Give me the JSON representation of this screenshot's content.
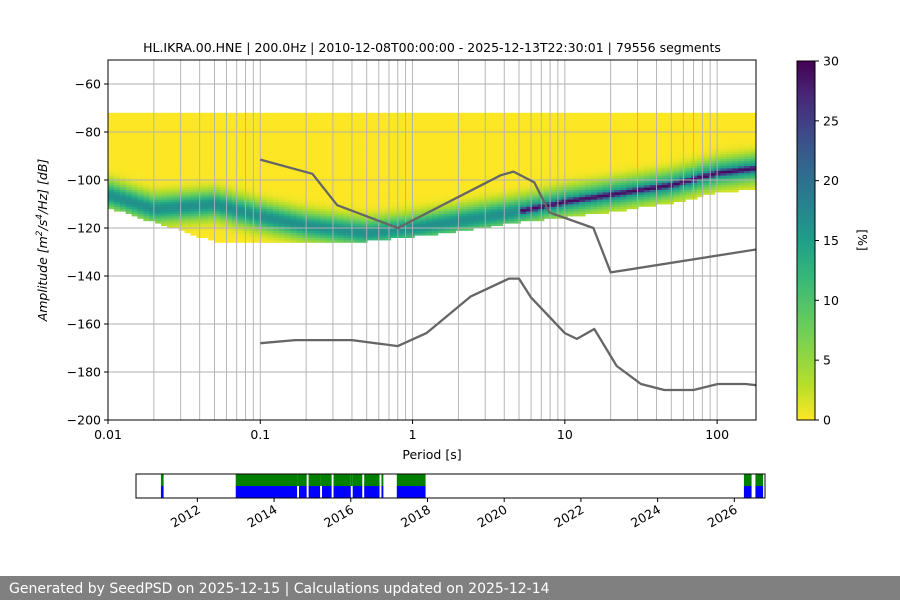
{
  "chart_data": [
    {
      "type": "heatmap",
      "title": "HL.IKRA.00.HNE | 200.0Hz | 2010-12-08T00:00:00 - 2025-12-13T22:30:01 | 79556 segments",
      "xlabel": "Period [s]",
      "ylabel_parts": [
        "Amplitude [m",
        "2",
        "/s",
        "4",
        "/Hz] [dB]"
      ],
      "x_scale": "log",
      "xlim": [
        0.01,
        180
      ],
      "ylim": [
        -200,
        -50
      ],
      "x_ticks": [
        0.01,
        0.1,
        1,
        10,
        100
      ],
      "x_tick_labels": [
        "0.01",
        "0.1",
        "1",
        "10",
        "100"
      ],
      "y_ticks": [
        -60,
        -80,
        -100,
        -120,
        -140,
        -160,
        -180,
        -200
      ],
      "y_tick_labels": [
        "−60",
        "−80",
        "−100",
        "−120",
        "−140",
        "−160",
        "−180",
        "−200"
      ],
      "grid": true,
      "colorbar": {
        "label": "[%]",
        "range": [
          0,
          30
        ],
        "ticks": [
          0,
          5,
          10,
          15,
          20,
          25,
          30
        ],
        "tick_labels": [
          "0",
          "5",
          "10",
          "15",
          "20",
          "25",
          "30"
        ],
        "colormap": "viridis"
      },
      "mode_curve": {
        "period": [
          0.01,
          0.02,
          0.05,
          0.1,
          0.2,
          0.5,
          1,
          2,
          5,
          10,
          20,
          50,
          100,
          180
        ],
        "amplitude_db": [
          -106,
          -112,
          -110,
          -115,
          -119,
          -122,
          -120,
          -117,
          -113,
          -109,
          -106,
          -102,
          -97,
          -95
        ]
      },
      "spread_band": {
        "period": [
          0.01,
          0.02,
          0.05,
          0.1,
          0.2,
          0.5,
          1,
          2,
          5,
          10,
          20,
          50,
          100,
          180
        ],
        "upper_db": [
          -72,
          -72,
          -72,
          -72,
          -72,
          -72,
          -72,
          -72,
          -72,
          -72,
          -72,
          -72,
          -72,
          -72
        ],
        "lower_db": [
          -112,
          -118,
          -126,
          -126,
          -126,
          -126,
          -124,
          -122,
          -118,
          -116,
          -114,
          -110,
          -106,
          -104
        ]
      },
      "nhnm": {
        "period": [
          0.1,
          0.22,
          0.32,
          0.8,
          3.8,
          4.6,
          6.3,
          7.9,
          15.4,
          20,
          354.8
        ],
        "amplitude_db": [
          -91.5,
          -97.4,
          -110.5,
          -120,
          -98,
          -96.5,
          -101,
          -113.5,
          -120,
          -138.5,
          -126
        ]
      },
      "nlnm": {
        "period": [
          0.1,
          0.17,
          0.4,
          0.8,
          1.24,
          2.4,
          4.3,
          5,
          6,
          10,
          12,
          15.6,
          21.9,
          31.6,
          45,
          70,
          101,
          154,
          180
        ],
        "amplitude_db": [
          -168,
          -166.7,
          -166.7,
          -169.2,
          -163.7,
          -148.6,
          -141.1,
          -141.1,
          -149,
          -163.8,
          -166.2,
          -162.1,
          -177.5,
          -185,
          -187.5,
          -187.5,
          -185,
          -185,
          -185.5
        ]
      }
    },
    {
      "type": "timeline",
      "x_ticks": [
        2012,
        2014,
        2016,
        2018,
        2020,
        2022,
        2024,
        2026
      ],
      "x_tick_labels": [
        "2012",
        "2014",
        "2016",
        "2018",
        "2020",
        "2022",
        "2024",
        "2026"
      ],
      "xlim": [
        2010.4,
        2026.8
      ],
      "top_color": "#008000",
      "bottom_color": "#0000ff",
      "coverage": [
        [
          2011.05,
          2011.12
        ],
        [
          2013.0,
          2014.6
        ],
        [
          2014.65,
          2014.85
        ],
        [
          2014.9,
          2015.2
        ],
        [
          2015.25,
          2015.5
        ],
        [
          2015.55,
          2016.0
        ],
        [
          2016.05,
          2016.3
        ],
        [
          2016.35,
          2016.75
        ],
        [
          2016.8,
          2016.85
        ],
        [
          2017.2,
          2017.95
        ],
        [
          2026.25,
          2026.45
        ],
        [
          2026.55,
          2026.75
        ]
      ],
      "gaps_top_only": [
        [
          2014.6,
          2014.65
        ],
        [
          2015.2,
          2015.25
        ],
        [
          2016.0,
          2016.05
        ]
      ]
    }
  ],
  "footer": {
    "text": "Generated by SeedPSD on 2025-12-15 | Calculations updated on 2025-12-14"
  }
}
